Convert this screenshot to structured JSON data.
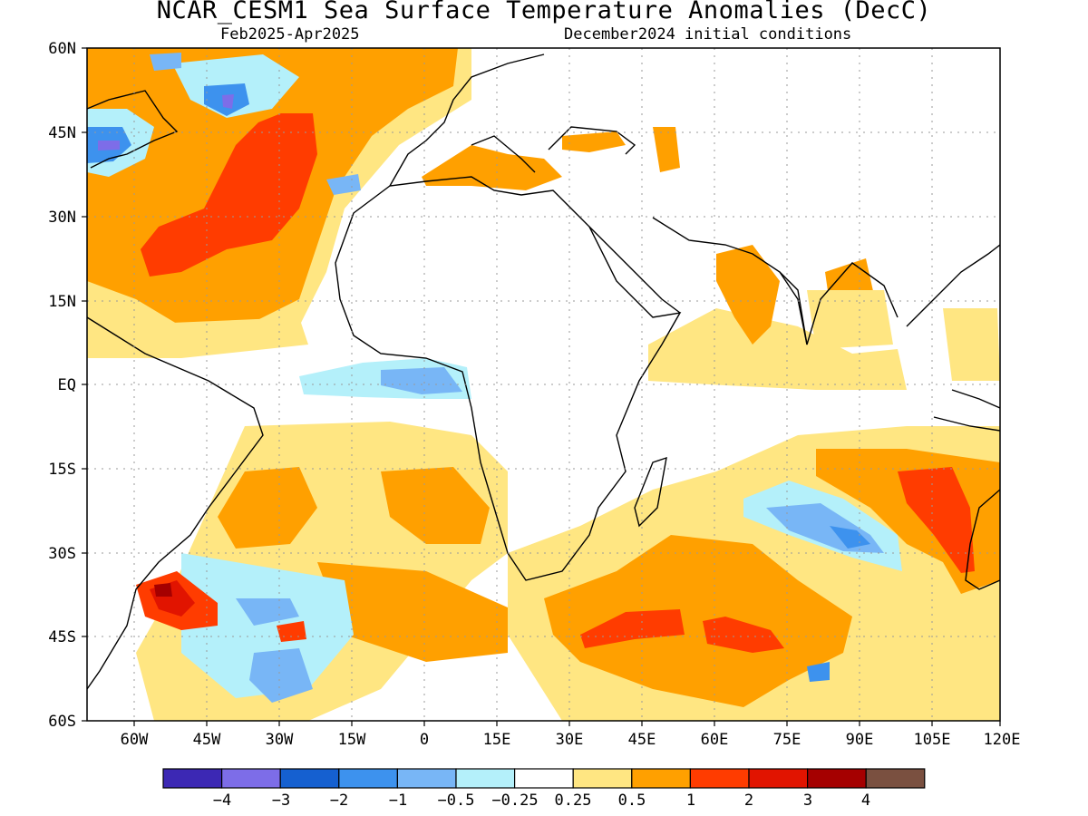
{
  "title": "NCAR_CESM1 Sea Surface Temperature Anomalies (DecC)",
  "subtitle_left": "Feb2025-Apr2025",
  "subtitle_right": "December2024 initial conditions",
  "map": {
    "lon_range": [
      -69,
      120
    ],
    "lat_range": [
      -60,
      60
    ],
    "lat_ticks": [
      "60N",
      "45N",
      "30N",
      "15N",
      "EQ",
      "15S",
      "30S",
      "45S",
      "60S"
    ],
    "lon_ticks": [
      "60W",
      "45W",
      "30W",
      "15W",
      "0",
      "15E",
      "30E",
      "45E",
      "60E",
      "75E",
      "90E",
      "105E",
      "120E"
    ],
    "grid": "dotted"
  },
  "colorbar": {
    "colors": [
      "#3c28b4",
      "#7d6de8",
      "#1560d0",
      "#3d92ee",
      "#78b6f6",
      "#b4f0fa",
      "#ffffff",
      "#ffe682",
      "#ffa000",
      "#ff3c00",
      "#e11400",
      "#a50000",
      "#7a5040"
    ],
    "labels": [
      "−4",
      "−3",
      "−2",
      "−1",
      "−0.5",
      "−0.25",
      "0.25",
      "0.5",
      "1",
      "2",
      "3",
      "4"
    ]
  }
}
